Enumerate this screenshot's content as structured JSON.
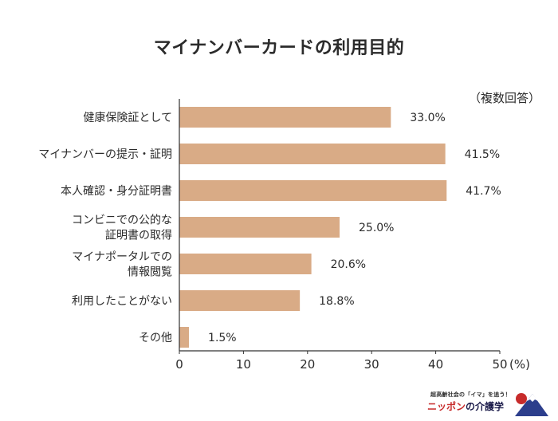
{
  "chart_data": {
    "type": "bar",
    "orientation": "horizontal",
    "title": "マイナンバーカードの利用目的",
    "note": "（複数回答）",
    "categories": [
      [
        "健康保険証として"
      ],
      [
        "マイナンバーの提示・証明"
      ],
      [
        "本人確認・身分証明書"
      ],
      [
        "コンビニでの公的な",
        "証明書の取得"
      ],
      [
        "マイナポータルでの",
        "情報閲覧"
      ],
      [
        "利用したことがない"
      ],
      [
        "その他"
      ]
    ],
    "values": [
      33.0,
      41.5,
      41.7,
      25.0,
      20.6,
      18.8,
      1.5
    ],
    "value_labels": [
      "33.0%",
      "41.5%",
      "41.7%",
      "25.0%",
      "20.6%",
      "18.8%",
      "1.5%"
    ],
    "xlim": [
      0,
      50
    ],
    "xticks": [
      0,
      10,
      20,
      30,
      40,
      50
    ],
    "xunit": "(%)",
    "bar_color": "#d9ab86",
    "grid": false
  },
  "branding": {
    "tagline": "超高齢社会の「イマ」を追う！",
    "name_part1": "ニッポン",
    "name_part2": "の",
    "name_part3": "介護学"
  }
}
